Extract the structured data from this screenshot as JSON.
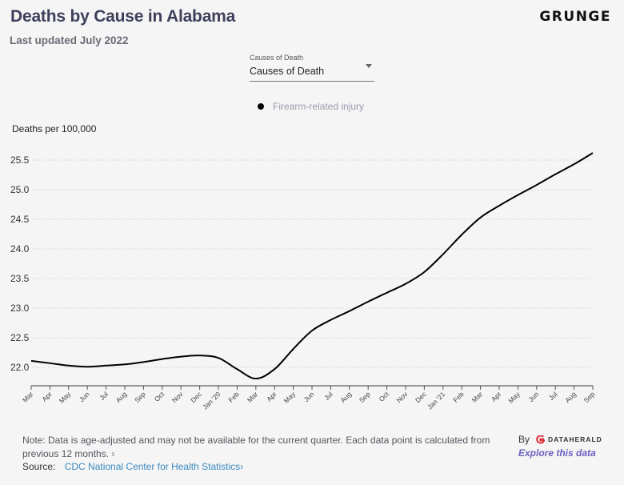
{
  "header": {
    "title": "Deaths by Cause in Alabama",
    "subtitle": "Last updated July 2022",
    "brand": "GRUNGE"
  },
  "dropdown": {
    "label": "Causes of Death",
    "value": "Causes of Death"
  },
  "legend": {
    "items": [
      {
        "label": "Firearm-related injury",
        "color": "#000000"
      }
    ]
  },
  "footer": {
    "note": "Note: Data is age-adjusted and may not be available for the current quarter. Each data point is calculated from previous 12 months.",
    "note_chevron": "›",
    "source_label": "Source:",
    "source_link": "CDC National Center for Health Statistics",
    "source_chevron": "›",
    "by_label": "By",
    "by_org": "DATAHERALD",
    "explore_link": "Explore this data",
    "accent_color": "#6a5fc1",
    "logo_color": "#e0303a"
  },
  "chart_data": {
    "type": "line",
    "title": "Deaths by Cause in Alabama",
    "xlabel": "",
    "ylabel": "Deaths per 100,000",
    "ylim": [
      21.67,
      25.75
    ],
    "yticks": [
      22.0,
      22.5,
      23.0,
      23.5,
      24.0,
      24.5,
      25.0,
      25.5
    ],
    "ytick_labels": [
      "22.0",
      "22.5",
      "23.0",
      "23.5",
      "24.0",
      "24.5",
      "25.0",
      "25.5"
    ],
    "grid": true,
    "legend_position": "top-center",
    "x": [
      "Mar",
      "Apr",
      "May",
      "Jun",
      "Jul",
      "Aug",
      "Sep",
      "Oct",
      "Nov",
      "Dec",
      "Jan '20",
      "Feb",
      "Mar",
      "Apr",
      "May",
      "Jun",
      "Jul",
      "Aug",
      "Sep",
      "Oct",
      "Nov",
      "Dec",
      "Jan '21",
      "Feb",
      "Mar",
      "Apr",
      "May",
      "Jun",
      "Jul",
      "Aug",
      "Sep"
    ],
    "series": [
      {
        "name": "Firearm-related injury",
        "color": "#000000",
        "values": [
          22.11,
          22.07,
          22.03,
          22.01,
          22.03,
          22.05,
          22.09,
          22.14,
          22.18,
          22.2,
          22.16,
          21.97,
          21.81,
          21.97,
          22.31,
          22.62,
          22.8,
          22.95,
          23.11,
          23.26,
          23.41,
          23.61,
          23.91,
          24.24,
          24.53,
          24.73,
          24.91,
          25.08,
          25.26,
          25.43,
          25.62
        ]
      }
    ]
  }
}
